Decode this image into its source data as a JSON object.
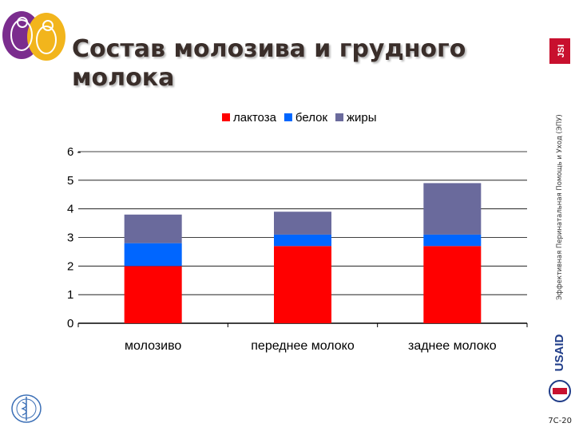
{
  "slide": {
    "title": "Состав молозива и грудного молока",
    "side_text": "Эффективная Перинатальная Помощь и Уход (ЭПУ)",
    "slide_number": "7C-20",
    "logos": {
      "top_left": "mother-child-logo",
      "top_right": "jsi-logo",
      "side": "usaid-logo",
      "bottom_left": "who-emblem-logo"
    },
    "logo_text": {
      "jsi": "JSI",
      "usaid": "USAID"
    }
  },
  "chart_data": {
    "type": "bar",
    "stacked": true,
    "categories": [
      "молозиво",
      "переднее молоко",
      "заднее молоко"
    ],
    "series": [
      {
        "name": "лактоза",
        "color": "#ff0000",
        "values": [
          2.0,
          2.7,
          2.7
        ]
      },
      {
        "name": "белок",
        "color": "#0066ff",
        "values": [
          0.8,
          0.4,
          0.4
        ]
      },
      {
        "name": "жиры",
        "color": "#6a6a9c",
        "values": [
          1.0,
          0.8,
          1.8
        ]
      }
    ],
    "yticks": [
      "0",
      "1",
      "2",
      "3",
      "4",
      "5",
      "6 -"
    ],
    "ylim": [
      0,
      6
    ],
    "grid": true,
    "legend_position": "top"
  }
}
